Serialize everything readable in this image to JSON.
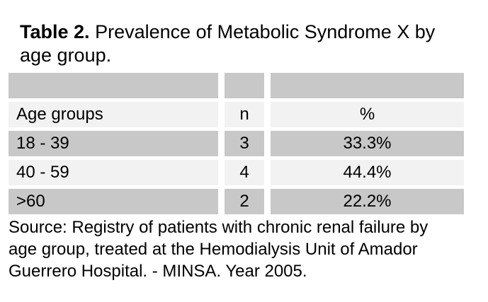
{
  "title": {
    "label": "Table 2.",
    "line1_rest": "Prevalence of Metabolic Syndrome X by",
    "line2": "age group."
  },
  "table": {
    "columns": [
      "Age groups",
      "n",
      "%"
    ],
    "rows": [
      {
        "age_group": "18 - 39",
        "n": "3",
        "percent": "33.3%"
      },
      {
        "age_group": "40 - 59",
        "n": "4",
        "percent": "44.4%"
      },
      {
        "age_group": ">60",
        "n": "2",
        "percent": "22.2%"
      }
    ]
  },
  "source": {
    "lines": [
      "Source: Registry of patients with chronic renal failure by",
      "age group, treated at the Hemodialysis Unit of Amador",
      "Guerrero Hospital. - MINSA. Year 2005."
    ]
  },
  "chart_data": {
    "type": "table",
    "title": "Table 2. Prevalence of Metabolic Syndrome X by age group.",
    "columns": [
      "Age groups",
      "n",
      "%"
    ],
    "rows": [
      [
        "18 - 39",
        3,
        "33.3%"
      ],
      [
        "40 - 59",
        4,
        "44.4%"
      ],
      [
        ">60",
        2,
        "22.2%"
      ]
    ],
    "source": "Source: Registry of patients with chronic renal failure by age group, treated at the Hemodialysis Unit of Amador Guerrero Hospital. - MINSA. Year 2005."
  },
  "colors": {
    "row_dark": "#c8c8c8",
    "row_light": "#f2f2f2",
    "text": "#000000",
    "background": "#ffffff"
  }
}
